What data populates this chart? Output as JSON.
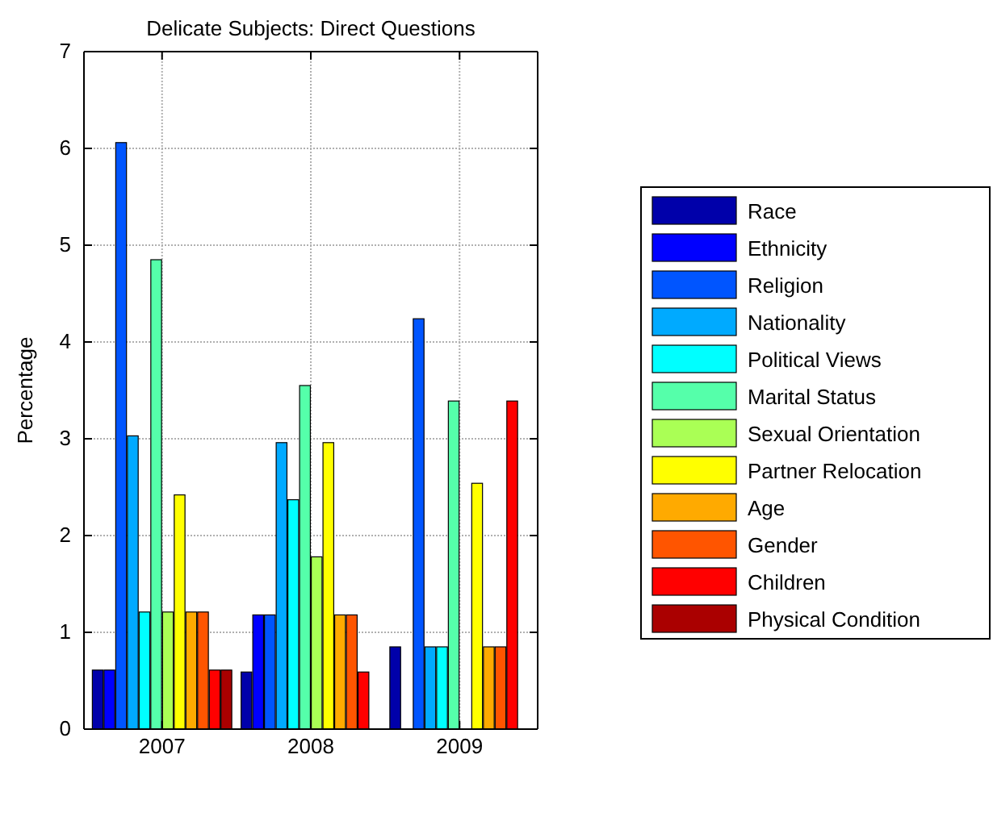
{
  "chart_data": {
    "type": "bar",
    "title": "Delicate Subjects:  Direct Questions",
    "ylabel": "Percentage",
    "categories": [
      "2007",
      "2008",
      "2009"
    ],
    "series": [
      {
        "name": "Race",
        "color": "#0000aa",
        "values": [
          0.61,
          0.59,
          0.85
        ]
      },
      {
        "name": "Ethnicity",
        "color": "#0000ff",
        "values": [
          0.61,
          1.18,
          0
        ]
      },
      {
        "name": "Religion",
        "color": "#0055ff",
        "values": [
          6.06,
          1.18,
          4.24
        ]
      },
      {
        "name": "Nationality",
        "color": "#00aaff",
        "values": [
          3.03,
          2.96,
          0.85
        ]
      },
      {
        "name": "Political Views",
        "color": "#00ffff",
        "values": [
          1.21,
          2.37,
          0.85
        ]
      },
      {
        "name": "Marital Status",
        "color": "#55ffaa",
        "values": [
          4.85,
          3.55,
          3.39
        ]
      },
      {
        "name": "Sexual Orientation",
        "color": "#aaff55",
        "values": [
          1.21,
          1.78,
          0
        ]
      },
      {
        "name": "Partner Relocation",
        "color": "#ffff00",
        "values": [
          2.42,
          2.96,
          2.54
        ]
      },
      {
        "name": "Age",
        "color": "#ffaa00",
        "values": [
          1.21,
          1.18,
          0.85
        ]
      },
      {
        "name": "Gender",
        "color": "#ff5500",
        "values": [
          1.21,
          1.18,
          0.85
        ]
      },
      {
        "name": "Children",
        "color": "#ff0000",
        "values": [
          0.61,
          0.59,
          3.39
        ]
      },
      {
        "name": "Physical Condition",
        "color": "#aa0000",
        "values": [
          0.61,
          0,
          0
        ]
      }
    ],
    "ylim": [
      0,
      7
    ],
    "yticks": [
      0,
      1,
      2,
      3,
      4,
      5,
      6,
      7
    ],
    "grid": true,
    "legend": "right"
  }
}
